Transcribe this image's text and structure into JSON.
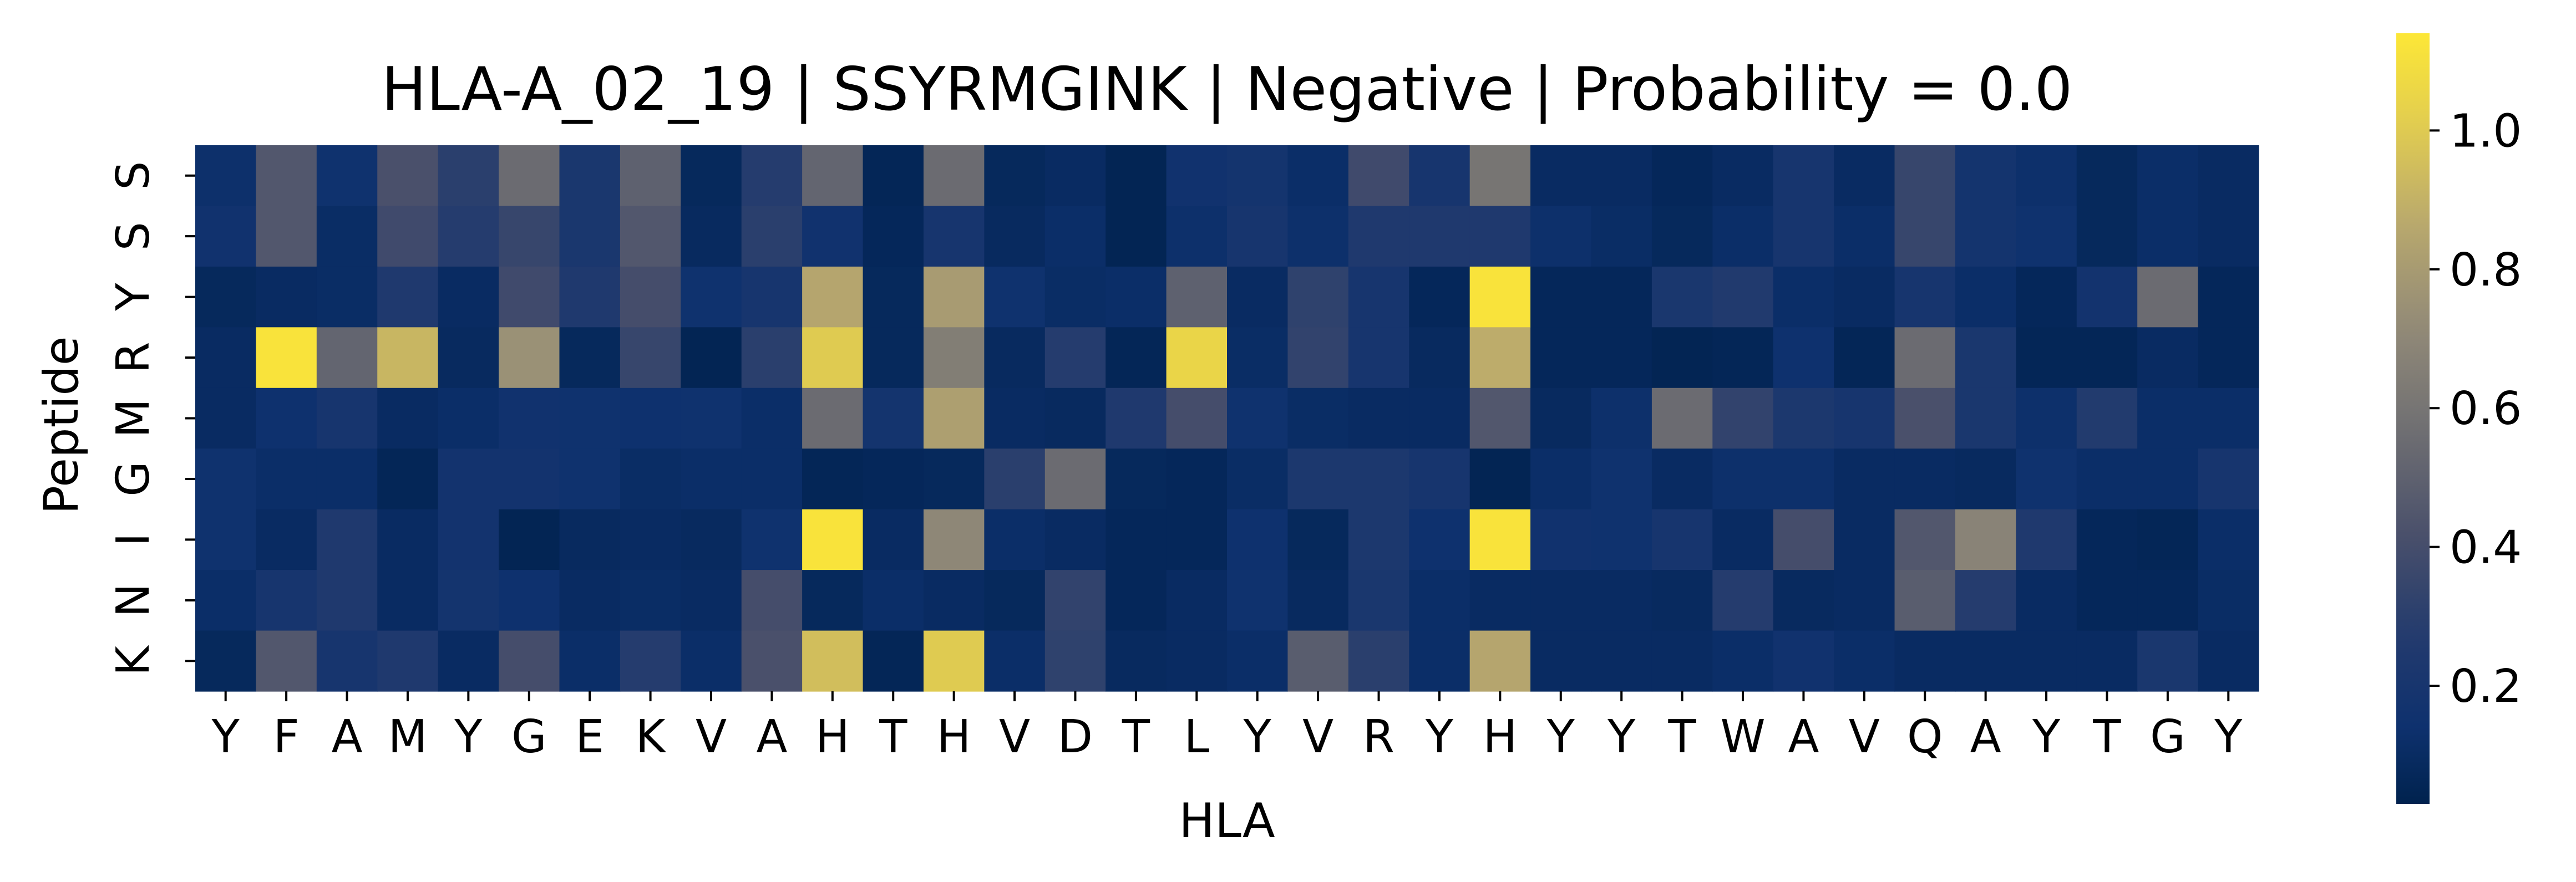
{
  "chart_data": {
    "type": "heatmap",
    "title": "HLA-A_02_19 | SSYRMGINK | Negative | Probability = 0.0",
    "xlabel": "HLA",
    "ylabel": "Peptide",
    "x_labels": [
      "Y",
      "F",
      "A",
      "M",
      "Y",
      "G",
      "E",
      "K",
      "V",
      "A",
      "H",
      "T",
      "H",
      "V",
      "D",
      "T",
      "L",
      "Y",
      "V",
      "R",
      "Y",
      "H",
      "Y",
      "Y",
      "T",
      "W",
      "A",
      "V",
      "Q",
      "A",
      "Y",
      "T",
      "G",
      "Y"
    ],
    "y_labels": [
      "S",
      "S",
      "Y",
      "R",
      "M",
      "G",
      "I",
      "N",
      "K"
    ],
    "values": [
      [
        0.13,
        0.45,
        0.15,
        0.42,
        0.3,
        0.55,
        0.22,
        0.5,
        0.08,
        0.28,
        0.52,
        0.06,
        0.55,
        0.08,
        0.1,
        0.05,
        0.16,
        0.18,
        0.12,
        0.38,
        0.2,
        0.6,
        0.1,
        0.1,
        0.07,
        0.1,
        0.2,
        0.1,
        0.35,
        0.18,
        0.13,
        0.08,
        0.12,
        0.1
      ],
      [
        0.16,
        0.45,
        0.11,
        0.38,
        0.28,
        0.35,
        0.22,
        0.45,
        0.09,
        0.3,
        0.16,
        0.07,
        0.2,
        0.09,
        0.12,
        0.05,
        0.13,
        0.2,
        0.13,
        0.25,
        0.25,
        0.25,
        0.13,
        0.11,
        0.08,
        0.12,
        0.2,
        0.12,
        0.35,
        0.18,
        0.15,
        0.08,
        0.12,
        0.1
      ],
      [
        0.08,
        0.1,
        0.11,
        0.25,
        0.1,
        0.38,
        0.25,
        0.4,
        0.15,
        0.2,
        0.85,
        0.08,
        0.8,
        0.15,
        0.11,
        0.12,
        0.5,
        0.1,
        0.32,
        0.2,
        0.07,
        1.12,
        0.07,
        0.07,
        0.22,
        0.26,
        0.12,
        0.1,
        0.2,
        0.12,
        0.07,
        0.17,
        0.55,
        0.07
      ],
      [
        0.1,
        1.12,
        0.52,
        0.92,
        0.09,
        0.75,
        0.08,
        0.35,
        0.05,
        0.3,
        1.0,
        0.08,
        0.65,
        0.09,
        0.28,
        0.06,
        1.05,
        0.11,
        0.33,
        0.2,
        0.09,
        0.88,
        0.07,
        0.07,
        0.05,
        0.06,
        0.14,
        0.06,
        0.55,
        0.22,
        0.06,
        0.06,
        0.1,
        0.07
      ],
      [
        0.1,
        0.14,
        0.2,
        0.1,
        0.12,
        0.16,
        0.15,
        0.14,
        0.15,
        0.12,
        0.55,
        0.18,
        0.82,
        0.1,
        0.09,
        0.25,
        0.4,
        0.15,
        0.11,
        0.1,
        0.1,
        0.45,
        0.09,
        0.13,
        0.55,
        0.33,
        0.23,
        0.2,
        0.42,
        0.22,
        0.13,
        0.27,
        0.12,
        0.12
      ],
      [
        0.15,
        0.12,
        0.12,
        0.06,
        0.17,
        0.17,
        0.15,
        0.11,
        0.12,
        0.12,
        0.06,
        0.07,
        0.08,
        0.3,
        0.55,
        0.08,
        0.07,
        0.11,
        0.23,
        0.23,
        0.2,
        0.05,
        0.12,
        0.15,
        0.1,
        0.13,
        0.13,
        0.1,
        0.1,
        0.09,
        0.15,
        0.12,
        0.12,
        0.2
      ],
      [
        0.15,
        0.1,
        0.25,
        0.1,
        0.17,
        0.05,
        0.09,
        0.1,
        0.09,
        0.15,
        1.12,
        0.1,
        0.7,
        0.12,
        0.1,
        0.07,
        0.07,
        0.14,
        0.08,
        0.23,
        0.14,
        1.12,
        0.16,
        0.15,
        0.2,
        0.1,
        0.4,
        0.1,
        0.45,
        0.68,
        0.25,
        0.07,
        0.06,
        0.12
      ],
      [
        0.12,
        0.2,
        0.25,
        0.1,
        0.18,
        0.14,
        0.1,
        0.11,
        0.1,
        0.4,
        0.08,
        0.12,
        0.1,
        0.08,
        0.33,
        0.07,
        0.1,
        0.15,
        0.09,
        0.22,
        0.12,
        0.1,
        0.1,
        0.1,
        0.09,
        0.28,
        0.09,
        0.1,
        0.48,
        0.28,
        0.1,
        0.07,
        0.07,
        0.11
      ],
      [
        0.08,
        0.45,
        0.2,
        0.25,
        0.1,
        0.4,
        0.12,
        0.28,
        0.12,
        0.42,
        0.95,
        0.06,
        1.0,
        0.12,
        0.32,
        0.09,
        0.1,
        0.12,
        0.48,
        0.3,
        0.12,
        0.85,
        0.1,
        0.1,
        0.1,
        0.12,
        0.16,
        0.12,
        0.1,
        0.1,
        0.1,
        0.1,
        0.22,
        0.1
      ]
    ],
    "colorbar": {
      "colormap": "cividis",
      "vmin": 0.03,
      "vmax": 1.14,
      "ticks": [
        "0.2",
        "0.4",
        "0.6",
        "0.8",
        "1.0"
      ],
      "tick_values": [
        0.2,
        0.4,
        0.6,
        0.8,
        1.0
      ]
    },
    "grid": false,
    "legend": "colorbar-right"
  }
}
